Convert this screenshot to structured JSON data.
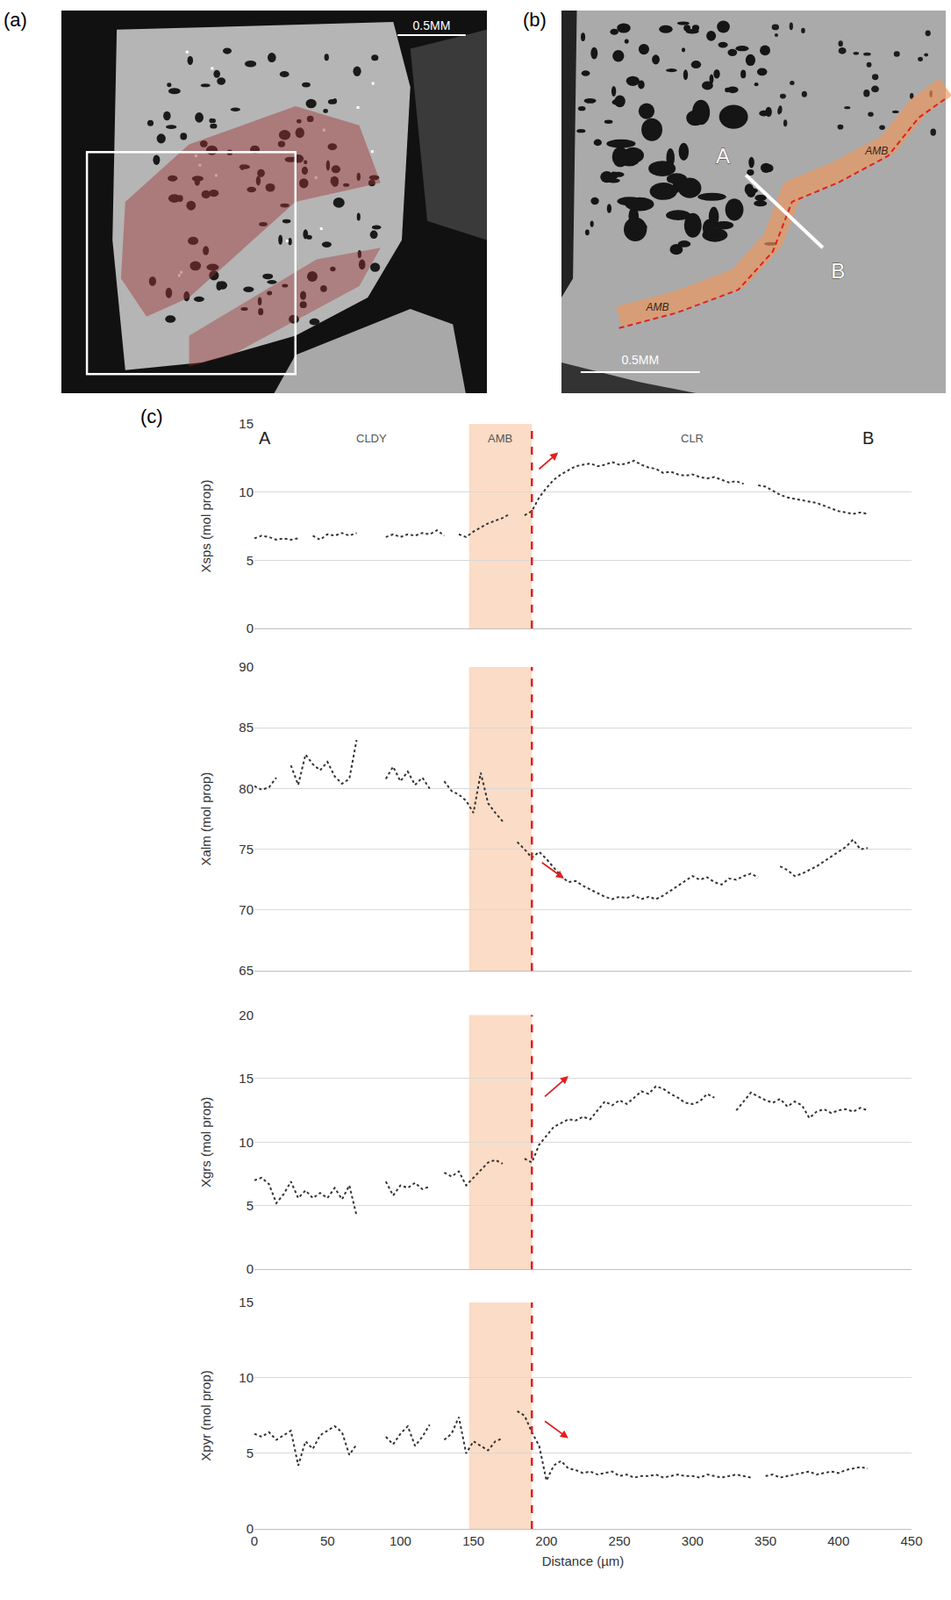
{
  "panels": {
    "a": {
      "label": "(a)",
      "scale_bar": "0.5MM"
    },
    "b": {
      "label": "(b)",
      "scale_bar": "0.5MM",
      "profile": [
        "A",
        "B"
      ],
      "zone_labels": [
        "AMB",
        "AMB"
      ]
    },
    "c": {
      "label": "(c)"
    }
  },
  "chart_data": [
    {
      "type": "line",
      "ylabel": "Xsps (mol prop)",
      "tick_labels": "y",
      "grid": true,
      "color": "#333333",
      "line_style": "dotted",
      "xlim": [
        0,
        450
      ],
      "xticks": [
        0,
        50,
        100,
        150,
        200,
        250,
        300,
        350,
        400,
        450
      ],
      "ylim": [
        0,
        15
      ],
      "yticks": [
        0,
        5,
        10,
        15
      ],
      "zone": [
        147,
        190
      ],
      "boundary": 190,
      "arrow": {
        "x": [
          194,
          208
        ],
        "y": [
          11.6,
          12.9
        ]
      },
      "annotations": [
        {
          "text": "A",
          "x": 7
        },
        {
          "text": "CLDY",
          "x": 80
        },
        {
          "text": "AMB",
          "x": 168
        },
        {
          "text": "CLR",
          "x": 300
        },
        {
          "text": "B",
          "x": 420
        }
      ],
      "x": [
        0,
        5,
        10,
        15,
        20,
        25,
        30,
        35,
        40,
        45,
        50,
        55,
        60,
        65,
        70,
        75,
        80,
        85,
        90,
        95,
        100,
        105,
        110,
        115,
        120,
        125,
        130,
        135,
        140,
        145,
        150,
        155,
        160,
        165,
        170,
        175,
        180,
        185,
        190,
        195,
        200,
        205,
        210,
        215,
        220,
        225,
        230,
        235,
        240,
        245,
        250,
        255,
        260,
        265,
        270,
        275,
        280,
        285,
        290,
        295,
        300,
        305,
        310,
        315,
        320,
        325,
        330,
        335,
        340,
        345,
        350,
        355,
        360,
        365,
        370,
        375,
        380,
        385,
        390,
        395,
        400,
        405,
        410,
        415,
        420
      ],
      "values": [
        6.6,
        6.8,
        6.7,
        6.5,
        6.6,
        6.5,
        6.6,
        null,
        6.8,
        6.5,
        6.9,
        6.8,
        7.0,
        6.8,
        7.0,
        null,
        null,
        null,
        6.7,
        6.9,
        6.7,
        6.9,
        6.8,
        7.0,
        6.9,
        7.2,
        6.8,
        null,
        6.9,
        6.7,
        7.1,
        7.4,
        7.7,
        7.9,
        8.1,
        8.4,
        null,
        8.3,
        8.6,
        9.6,
        10.3,
        10.9,
        11.3,
        11.6,
        11.9,
        12.0,
        12.1,
        11.9,
        12.0,
        12.2,
        12.0,
        12.1,
        12.3,
        12.0,
        11.8,
        11.7,
        11.4,
        11.5,
        11.3,
        11.2,
        11.3,
        11.1,
        11.0,
        11.1,
        10.9,
        10.7,
        10.8,
        10.6,
        null,
        10.5,
        10.4,
        10.1,
        9.8,
        9.6,
        9.5,
        9.4,
        9.3,
        9.2,
        9.0,
        8.8,
        8.6,
        8.5,
        8.4,
        8.5,
        8.4
      ]
    },
    {
      "type": "line",
      "ylabel": "Xalm (mol prop)",
      "tick_labels": "y",
      "grid": true,
      "color": "#333333",
      "line_style": "dotted",
      "xlim": [
        0,
        450
      ],
      "xticks": [
        0,
        50,
        100,
        150,
        200,
        250,
        300,
        350,
        400,
        450
      ],
      "ylim": [
        65,
        90
      ],
      "yticks": [
        65,
        70,
        75,
        80,
        85,
        90
      ],
      "zone": [
        147,
        190
      ],
      "boundary": 190,
      "arrow": {
        "x": [
          196,
          212
        ],
        "y": [
          74.0,
          72.6
        ]
      },
      "x": [
        0,
        5,
        10,
        15,
        20,
        25,
        30,
        35,
        40,
        45,
        50,
        55,
        60,
        65,
        70,
        75,
        80,
        85,
        90,
        95,
        100,
        105,
        110,
        115,
        120,
        125,
        130,
        135,
        140,
        145,
        150,
        155,
        160,
        165,
        170,
        175,
        180,
        185,
        190,
        195,
        200,
        205,
        210,
        215,
        220,
        225,
        230,
        235,
        240,
        245,
        250,
        255,
        260,
        265,
        270,
        275,
        280,
        285,
        290,
        295,
        300,
        305,
        310,
        315,
        320,
        325,
        330,
        335,
        340,
        345,
        350,
        355,
        360,
        365,
        370,
        375,
        380,
        385,
        390,
        395,
        400,
        405,
        410,
        415,
        420
      ],
      "values": [
        80.2,
        79.9,
        80.1,
        80.9,
        null,
        81.9,
        80.3,
        82.8,
        82.0,
        81.5,
        82.2,
        81.0,
        80.4,
        80.8,
        84.0,
        null,
        null,
        null,
        80.8,
        81.8,
        80.6,
        81.4,
        80.3,
        80.9,
        80.0,
        null,
        80.6,
        79.8,
        79.5,
        79.0,
        78.0,
        81.3,
        78.8,
        78.0,
        77.3,
        null,
        75.6,
        75.0,
        74.3,
        74.8,
        74.2,
        73.5,
        72.8,
        72.3,
        72.4,
        72.0,
        71.7,
        71.4,
        71.1,
        70.9,
        71.1,
        71.0,
        71.2,
        70.9,
        71.1,
        70.9,
        71.2,
        71.6,
        72.0,
        72.4,
        72.8,
        72.5,
        72.7,
        72.3,
        72.1,
        72.6,
        72.5,
        72.8,
        73.0,
        72.7,
        null,
        null,
        73.6,
        73.3,
        72.8,
        73.0,
        73.3,
        73.6,
        74.0,
        74.4,
        74.8,
        75.2,
        75.8,
        75.0,
        75.1
      ]
    },
    {
      "type": "line",
      "ylabel": "Xgrs (mol prop)",
      "tick_labels": "y",
      "grid": true,
      "color": "#333333",
      "line_style": "dotted",
      "xlim": [
        0,
        450
      ],
      "xticks": [
        0,
        50,
        100,
        150,
        200,
        250,
        300,
        350,
        400,
        450
      ],
      "ylim": [
        0,
        20
      ],
      "yticks": [
        0,
        5,
        10,
        15,
        20
      ],
      "zone": [
        147,
        190
      ],
      "boundary": 190,
      "arrow": {
        "x": [
          198,
          215
        ],
        "y": [
          13.5,
          15.2
        ]
      },
      "x": [
        0,
        5,
        10,
        15,
        20,
        25,
        30,
        35,
        40,
        45,
        50,
        55,
        60,
        65,
        70,
        75,
        80,
        85,
        90,
        95,
        100,
        105,
        110,
        115,
        120,
        125,
        130,
        135,
        140,
        145,
        150,
        155,
        160,
        165,
        170,
        175,
        180,
        185,
        190,
        195,
        200,
        205,
        210,
        215,
        220,
        225,
        230,
        235,
        240,
        245,
        250,
        255,
        260,
        265,
        270,
        275,
        280,
        285,
        290,
        295,
        300,
        305,
        310,
        315,
        320,
        325,
        330,
        335,
        340,
        345,
        350,
        355,
        360,
        365,
        370,
        375,
        380,
        385,
        390,
        395,
        400,
        405,
        410,
        415,
        420
      ],
      "values": [
        7.0,
        7.2,
        6.7,
        5.2,
        5.9,
        6.9,
        5.6,
        6.2,
        5.6,
        6.0,
        5.6,
        6.4,
        5.5,
        6.6,
        4.2,
        null,
        null,
        null,
        6.9,
        5.8,
        6.6,
        6.4,
        6.8,
        6.3,
        6.5,
        null,
        7.6,
        7.3,
        7.7,
        6.6,
        7.2,
        7.8,
        8.4,
        8.6,
        8.3,
        null,
        null,
        8.7,
        8.4,
        9.8,
        10.5,
        11.2,
        11.5,
        11.8,
        11.7,
        12.0,
        11.8,
        12.5,
        13.2,
        12.9,
        13.3,
        13.0,
        13.5,
        14.0,
        13.8,
        14.4,
        14.2,
        13.8,
        13.5,
        13.1,
        13.0,
        13.2,
        13.8,
        13.5,
        null,
        null,
        12.5,
        13.2,
        13.9,
        13.6,
        13.3,
        13.1,
        13.4,
        12.8,
        13.2,
        12.9,
        11.9,
        12.4,
        12.6,
        12.3,
        12.5,
        12.6,
        12.4,
        12.7,
        12.5
      ]
    },
    {
      "type": "line",
      "ylabel": "Xpyr (mol prop)",
      "xlabel": "Distance (µm)",
      "grid": true,
      "color": "#333333",
      "line_style": "dotted",
      "xlim": [
        0,
        450
      ],
      "xticks": [
        0,
        50,
        100,
        150,
        200,
        250,
        300,
        350,
        400,
        450
      ],
      "ylim": [
        0,
        15
      ],
      "yticks": [
        0,
        5,
        10,
        15
      ],
      "zone": [
        147,
        190
      ],
      "boundary": 190,
      "arrow": {
        "x": [
          198,
          215
        ],
        "y": [
          7.2,
          6.0
        ]
      },
      "x": [
        0,
        5,
        10,
        15,
        20,
        25,
        30,
        35,
        40,
        45,
        50,
        55,
        60,
        65,
        70,
        75,
        80,
        85,
        90,
        95,
        100,
        105,
        110,
        115,
        120,
        125,
        130,
        135,
        140,
        145,
        150,
        155,
        160,
        165,
        170,
        175,
        180,
        185,
        190,
        195,
        200,
        205,
        210,
        215,
        220,
        225,
        230,
        235,
        240,
        245,
        250,
        255,
        260,
        265,
        270,
        275,
        280,
        285,
        290,
        295,
        300,
        305,
        310,
        315,
        320,
        325,
        330,
        335,
        340,
        345,
        350,
        355,
        360,
        365,
        370,
        375,
        380,
        385,
        390,
        395,
        400,
        405,
        410,
        415,
        420
      ],
      "values": [
        6.3,
        6.1,
        6.4,
        5.9,
        6.2,
        6.5,
        4.2,
        5.8,
        5.3,
        6.2,
        6.5,
        6.8,
        6.4,
        4.9,
        5.6,
        null,
        null,
        null,
        6.1,
        5.6,
        6.3,
        6.8,
        5.5,
        6.1,
        6.9,
        null,
        5.9,
        6.3,
        7.4,
        5.0,
        5.8,
        5.5,
        5.2,
        5.8,
        6.0,
        null,
        7.8,
        7.5,
        6.4,
        5.5,
        3.2,
        4.2,
        4.5,
        4.0,
        3.9,
        3.7,
        3.8,
        3.6,
        3.7,
        3.8,
        3.5,
        3.6,
        3.4,
        3.5,
        3.5,
        3.6,
        3.4,
        3.5,
        3.6,
        3.5,
        3.5,
        3.4,
        3.6,
        3.5,
        3.4,
        3.5,
        3.6,
        3.5,
        3.4,
        null,
        3.5,
        3.6,
        3.4,
        3.5,
        3.6,
        3.7,
        3.8,
        3.6,
        3.7,
        3.8,
        3.7,
        3.9,
        4.0,
        4.1,
        4.0
      ]
    }
  ]
}
